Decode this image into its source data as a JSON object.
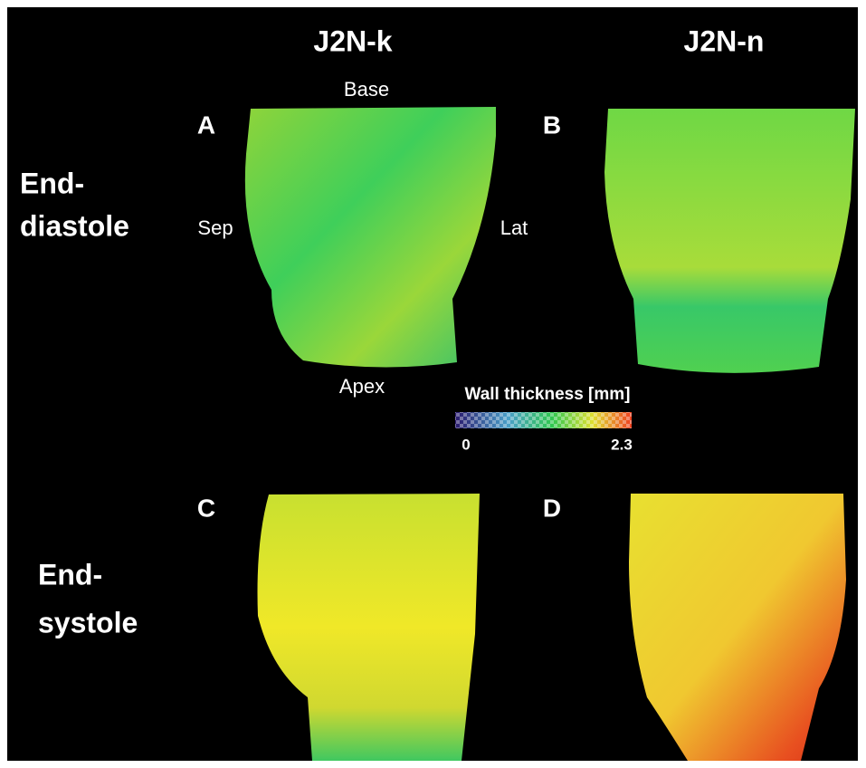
{
  "columns": [
    "J2N-k",
    "J2N-n"
  ],
  "rows": [
    {
      "label_lines": [
        "End-",
        "diastole"
      ]
    },
    {
      "label_lines": [
        "End-",
        "systole"
      ]
    }
  ],
  "panels": [
    "A",
    "B",
    "C",
    "D"
  ],
  "orientation": {
    "top": "Base",
    "left": "Sep",
    "right": "Lat",
    "bottom": "Apex"
  },
  "colorbar": {
    "title": "Wall thickness [mm]",
    "min_label": "0",
    "max_label": "2.3"
  }
}
